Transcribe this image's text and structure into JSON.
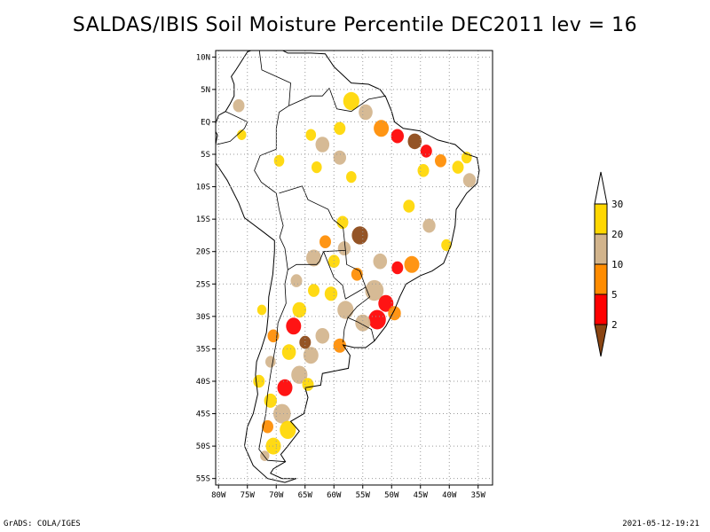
{
  "title": "SALDAS/IBIS Soil Moisture Percentile DEC2011 lev = 16",
  "map": {
    "lat_labels": [
      {
        "lat": 10,
        "label": "10N"
      },
      {
        "lat": 5,
        "label": "5N"
      },
      {
        "lat": 0,
        "label": "EQ"
      },
      {
        "lat": -5,
        "label": "5S"
      },
      {
        "lat": -10,
        "label": "10S"
      },
      {
        "lat": -15,
        "label": "15S"
      },
      {
        "lat": -20,
        "label": "20S"
      },
      {
        "lat": -25,
        "label": "25S"
      },
      {
        "lat": -30,
        "label": "30S"
      },
      {
        "lat": -35,
        "label": "35S"
      },
      {
        "lat": -40,
        "label": "40S"
      },
      {
        "lat": -45,
        "label": "45S"
      },
      {
        "lat": -50,
        "label": "50S"
      },
      {
        "lat": -55,
        "label": "55S"
      }
    ],
    "lon_labels": [
      {
        "lon": -80,
        "label": "80W"
      },
      {
        "lon": -75,
        "label": "75W"
      },
      {
        "lon": -70,
        "label": "70W"
      },
      {
        "lon": -65,
        "label": "65W"
      },
      {
        "lon": -60,
        "label": "60W"
      },
      {
        "lon": -55,
        "label": "55W"
      },
      {
        "lon": -50,
        "label": "50W"
      },
      {
        "lon": -45,
        "label": "45W"
      },
      {
        "lon": -40,
        "label": "40W"
      },
      {
        "lon": -35,
        "label": "35W"
      }
    ],
    "lon_range": [
      -80.5,
      -32.5
    ],
    "lat_range": [
      -56,
      11
    ],
    "grid": true
  },
  "colors": {
    "land_outline": "#000000",
    "grid": "#9a9a9a"
  },
  "colorbar": {
    "levels": [
      "2",
      "5",
      "10",
      "20",
      "30"
    ],
    "colors": [
      "#8b4513",
      "#ff0000",
      "#ff8c00",
      "#d2b48c",
      "#ffd700",
      "#ffffff"
    ]
  },
  "footer": {
    "left": "GrADS: COLA/IGES",
    "right": "2021-05-12-19:21"
  }
}
